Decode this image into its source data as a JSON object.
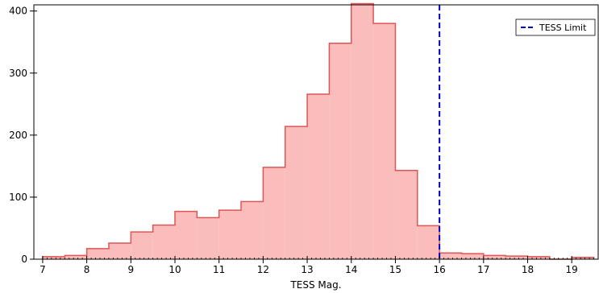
{
  "chart_data": {
    "type": "histogram",
    "title": "",
    "xlabel": "TESS Mag.",
    "ylabel": "",
    "xlim": [
      6.8,
      19.6
    ],
    "ylim": [
      0,
      410
    ],
    "bin_width": 0.5,
    "bins": [
      {
        "x0": 7.0,
        "x1": 7.5,
        "count": 4
      },
      {
        "x0": 7.5,
        "x1": 8.0,
        "count": 6
      },
      {
        "x0": 8.0,
        "x1": 8.5,
        "count": 17
      },
      {
        "x0": 8.5,
        "x1": 9.0,
        "count": 26
      },
      {
        "x0": 9.0,
        "x1": 9.5,
        "count": 44
      },
      {
        "x0": 9.5,
        "x1": 10.0,
        "count": 55
      },
      {
        "x0": 10.0,
        "x1": 10.5,
        "count": 77
      },
      {
        "x0": 10.5,
        "x1": 11.0,
        "count": 67
      },
      {
        "x0": 11.0,
        "x1": 11.5,
        "count": 79
      },
      {
        "x0": 11.5,
        "x1": 12.0,
        "count": 93
      },
      {
        "x0": 12.0,
        "x1": 12.5,
        "count": 148
      },
      {
        "x0": 12.5,
        "x1": 13.0,
        "count": 214
      },
      {
        "x0": 13.0,
        "x1": 13.5,
        "count": 266
      },
      {
        "x0": 13.5,
        "x1": 14.0,
        "count": 348
      },
      {
        "x0": 14.0,
        "x1": 14.5,
        "count": 412
      },
      {
        "x0": 14.5,
        "x1": 15.0,
        "count": 380
      },
      {
        "x0": 15.0,
        "x1": 15.5,
        "count": 143
      },
      {
        "x0": 15.5,
        "x1": 16.0,
        "count": 54
      },
      {
        "x0": 16.0,
        "x1": 16.5,
        "count": 10
      },
      {
        "x0": 16.5,
        "x1": 17.0,
        "count": 9
      },
      {
        "x0": 17.0,
        "x1": 17.5,
        "count": 6
      },
      {
        "x0": 17.5,
        "x1": 18.0,
        "count": 5
      },
      {
        "x0": 18.0,
        "x1": 18.5,
        "count": 4
      },
      {
        "x0": 18.5,
        "x1": 19.0,
        "count": 0
      },
      {
        "x0": 19.0,
        "x1": 19.5,
        "count": 3
      }
    ],
    "x_ticks": [
      "7",
      "8",
      "9",
      "10",
      "11",
      "12",
      "13",
      "14",
      "15",
      "16",
      "17",
      "18",
      "19"
    ],
    "y_ticks": [
      "0",
      "100",
      "200",
      "300",
      "400"
    ],
    "reference_line": {
      "x": 16,
      "label": "TESS Limit",
      "style": "dashed",
      "color": "#0000cc"
    },
    "legend": {
      "position": "top-right",
      "entries": [
        "TESS Limit"
      ]
    },
    "colors": {
      "fill": "#fbbcbc",
      "stroke": "#e05555",
      "limit": "#0000cc"
    },
    "grid": false
  }
}
